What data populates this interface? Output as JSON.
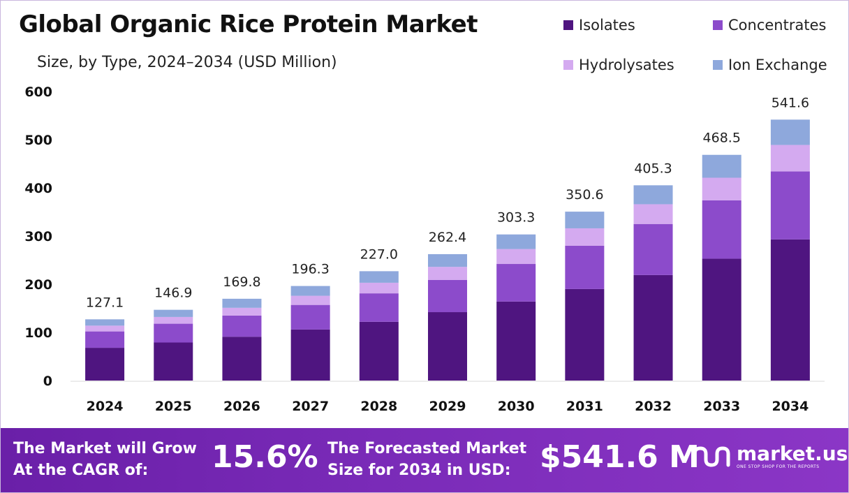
{
  "title": "Global Organic Rice Protein Market",
  "subtitle": "Size, by Type, 2024–2034 (USD Million)",
  "colors": {
    "isolates": "#4f1580",
    "concentrates": "#8c4bcb",
    "hydrolysates": "#d4aaf0",
    "ion_exchange": "#8ea8dc",
    "footer": "#7a2bb8"
  },
  "chart_data": {
    "type": "bar",
    "stacked": true,
    "categories": [
      "2024",
      "2025",
      "2026",
      "2027",
      "2028",
      "2029",
      "2030",
      "2031",
      "2032",
      "2033",
      "2034"
    ],
    "series": [
      {
        "name": "Isolates",
        "values": [
          68,
          79,
          91,
          106,
          122,
          142,
          164,
          190,
          219,
          253,
          293
        ]
      },
      {
        "name": "Concentrates",
        "values": [
          34,
          39,
          44,
          51,
          59,
          67,
          78,
          90,
          106,
          121,
          141
        ]
      },
      {
        "name": "Hydrolysates",
        "values": [
          12,
          14,
          16,
          19,
          22,
          27,
          31,
          36,
          41,
          47,
          55
        ]
      },
      {
        "name": "Ion Exchange",
        "values": [
          13.1,
          14.9,
          18.8,
          20.3,
          24.0,
          26.4,
          30.3,
          34.6,
          39.3,
          47.5,
          52.6
        ]
      }
    ],
    "totals": [
      "127.1",
      "146.9",
      "169.8",
      "196.3",
      "227.0",
      "262.4",
      "303.3",
      "350.6",
      "405.3",
      "468.5",
      "541.6"
    ],
    "y_ticks": [
      "0",
      "100",
      "200",
      "300",
      "400",
      "500",
      "600"
    ],
    "ylim": [
      0,
      600
    ],
    "legend_position": "top-right",
    "grid": false
  },
  "legend": [
    {
      "label": "Isolates",
      "color": "#4f1580"
    },
    {
      "label": "Concentrates",
      "color": "#8c4bcb"
    },
    {
      "label": "Hydrolysates",
      "color": "#d4aaf0"
    },
    {
      "label": "Ion Exchange",
      "color": "#8ea8dc"
    }
  ],
  "footer": {
    "cagr_line1": "The Market will Grow",
    "cagr_line2": "At the CAGR of:",
    "cagr_value": "15.6%",
    "forecast_line1": "The Forecasted Market",
    "forecast_line2": "Size for 2034 in USD:",
    "forecast_value": "$541.6 M",
    "logo_icon": "market-us-logo-icon",
    "logo_name": "market.us",
    "logo_tagline": "ONE STOP SHOP FOR THE REPORTS"
  }
}
